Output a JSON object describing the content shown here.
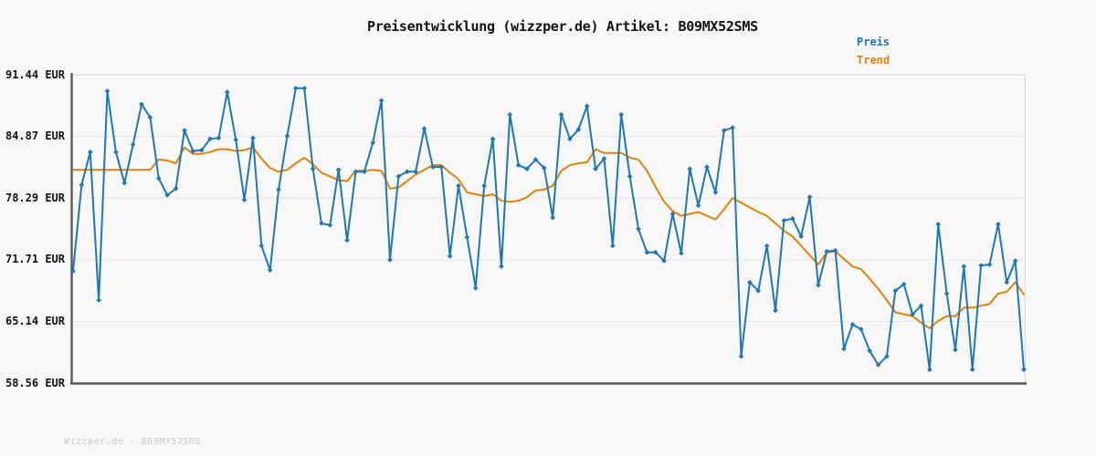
{
  "header": {
    "title": "Preisentwicklung (wizzper.de) Artikel: B09MX52SMS"
  },
  "footer": {
    "text": "Wizzper.de - B09MX52SMS"
  },
  "colors": {
    "price_line": "#1f77b4",
    "trend_line": "#e0820a",
    "grid_line": "#e6e6e6",
    "border_light": "#d9d9d9",
    "axis_dark": "#5a5a5a",
    "background": "#f7f7f7",
    "title_text": "#141414",
    "footer_text": "#c9c9c9"
  },
  "chart_data": {
    "type": "line",
    "title": "Preisentwicklung (wizzper.de) Artikel: B09MX52SMS",
    "xlabel": "",
    "ylabel": "",
    "x_tick_labels": [],
    "y_tick_labels": [
      "91.44 EUR",
      "84.87 EUR",
      "78.29 EUR",
      "71.71 EUR",
      "65.14 EUR",
      "58.56 EUR"
    ],
    "y_tick_values": [
      91.44,
      84.87,
      78.29,
      71.71,
      65.14,
      58.56
    ],
    "ylim": [
      58.56,
      91.44
    ],
    "n_points": 112,
    "grid": true,
    "legend_position": "top-right",
    "legend": [
      "Preis",
      "Trend"
    ],
    "series": [
      {
        "name": "Preis",
        "color": "#1f77b4",
        "marker": "diamond",
        "values": [
          70.5,
          79.7,
          83.2,
          67.4,
          89.7,
          83.2,
          79.9,
          84.0,
          88.3,
          86.9,
          80.4,
          78.6,
          79.3,
          85.5,
          83.3,
          83.4,
          84.6,
          84.7,
          89.6,
          84.5,
          78.1,
          84.7,
          73.2,
          70.6,
          79.2,
          84.9,
          90.0,
          90.0,
          81.4,
          75.6,
          75.4,
          81.3,
          73.8,
          81.1,
          81.1,
          84.2,
          88.7,
          71.7,
          80.6,
          81.1,
          81.1,
          85.7,
          81.6,
          81.6,
          72.1,
          79.6,
          74.1,
          68.7,
          79.6,
          84.6,
          71.0,
          87.2,
          81.8,
          81.4,
          82.4,
          81.5,
          76.2,
          87.2,
          84.6,
          85.6,
          88.1,
          81.4,
          82.5,
          73.2,
          87.2,
          80.6,
          75.0,
          72.5,
          72.5,
          71.6,
          76.6,
          72.4,
          81.4,
          77.5,
          81.6,
          78.9,
          85.5,
          85.8,
          61.4,
          69.3,
          68.4,
          73.2,
          66.3,
          75.9,
          76.1,
          74.2,
          78.4,
          69.0,
          72.6,
          72.7,
          62.2,
          64.8,
          64.3,
          62.0,
          60.5,
          61.4,
          68.4,
          69.1,
          65.9,
          66.8,
          60.0,
          75.5,
          68.1,
          62.1,
          71.0,
          60.0,
          71.1,
          71.2,
          75.5,
          69.3,
          71.6,
          60.0
        ]
      },
      {
        "name": "Trend",
        "color": "#e0820a",
        "marker": "none",
        "values": [
          81.3,
          81.3,
          81.3,
          81.3,
          81.3,
          81.3,
          81.3,
          81.3,
          81.3,
          81.3,
          82.4,
          82.3,
          82.0,
          83.7,
          83.0,
          83.0,
          83.2,
          83.5,
          83.5,
          83.3,
          83.4,
          83.7,
          82.5,
          81.5,
          81.1,
          81.3,
          82.0,
          82.6,
          81.9,
          81.0,
          80.6,
          80.2,
          80.1,
          81.2,
          81.2,
          81.3,
          81.2,
          79.3,
          79.4,
          80.1,
          80.8,
          81.3,
          81.8,
          81.8,
          81.0,
          80.3,
          78.9,
          78.7,
          78.5,
          78.7,
          78.0,
          77.9,
          78.0,
          78.4,
          79.1,
          79.2,
          79.6,
          81.2,
          81.8,
          82.0,
          82.1,
          83.5,
          83.1,
          83.1,
          83.1,
          82.6,
          82.4,
          81.2,
          79.5,
          77.9,
          76.9,
          76.4,
          76.6,
          76.8,
          76.4,
          76.0,
          77.1,
          78.3,
          77.8,
          77.3,
          76.8,
          76.4,
          75.6,
          74.8,
          74.2,
          73.2,
          72.2,
          71.2,
          72.5,
          72.6,
          71.8,
          71.0,
          70.7,
          69.7,
          68.6,
          67.4,
          66.1,
          65.9,
          65.7,
          65.0,
          64.4,
          65.2,
          65.7,
          65.7,
          66.6,
          66.6,
          66.8,
          67.0,
          68.1,
          68.3,
          69.3,
          68.0
        ]
      }
    ]
  }
}
